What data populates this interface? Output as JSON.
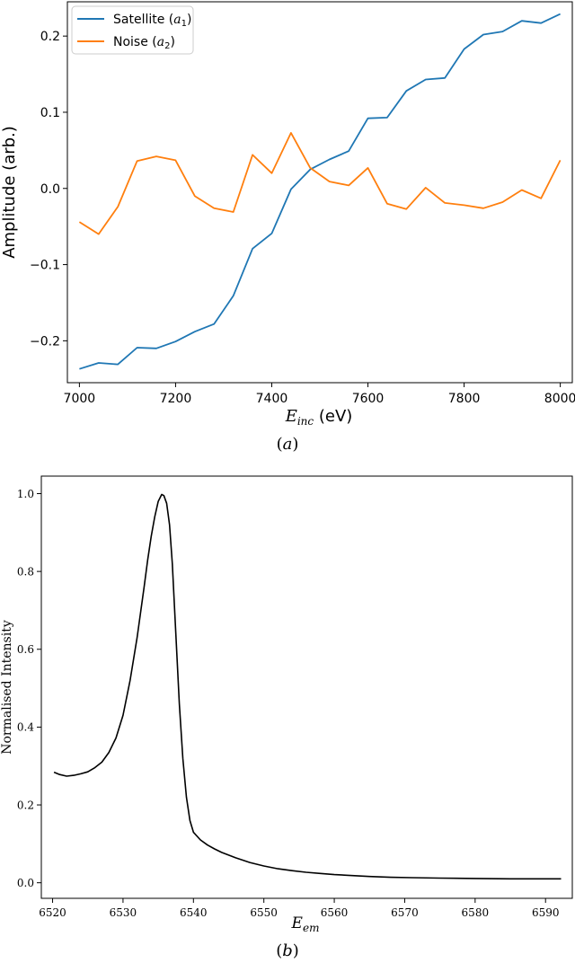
{
  "chart_data": [
    {
      "type": "line",
      "caption": "(a)",
      "xlabel": "E_inc (eV)",
      "ylabel": "Amplitude (arb.)",
      "xlim": [
        6975,
        8025
      ],
      "ylim": [
        -0.255,
        0.245
      ],
      "xticks": [
        7000,
        7200,
        7400,
        7600,
        7800,
        8000
      ],
      "xtick_labels": [
        "7000",
        "7200",
        "7400",
        "7600",
        "7800",
        "8000"
      ],
      "yticks": [
        -0.2,
        -0.1,
        0.0,
        0.1,
        0.2
      ],
      "ytick_labels": [
        "−0.2",
        "−0.1",
        "0.0",
        "0.1",
        "0.2"
      ],
      "grid": false,
      "legend_position": "top-left",
      "x": [
        7000,
        7040,
        7080,
        7120,
        7160,
        7200,
        7240,
        7280,
        7320,
        7360,
        7400,
        7440,
        7480,
        7520,
        7560,
        7600,
        7640,
        7680,
        7720,
        7760,
        7800,
        7840,
        7880,
        7920,
        7960,
        8000
      ],
      "series": [
        {
          "name": "Satellite (a1)",
          "color": "#1f77b4",
          "values": [
            -0.237,
            -0.229,
            -0.231,
            -0.209,
            -0.21,
            -0.201,
            -0.188,
            -0.178,
            -0.141,
            -0.079,
            -0.059,
            -0.001,
            0.025,
            0.038,
            0.049,
            0.092,
            0.093,
            0.128,
            0.143,
            0.145,
            0.183,
            0.202,
            0.206,
            0.22,
            0.217,
            0.229
          ]
        },
        {
          "name": "Noise (a2)",
          "color": "#ff7f0e",
          "values": [
            -0.044,
            -0.06,
            -0.024,
            0.036,
            0.042,
            0.037,
            -0.01,
            -0.026,
            -0.031,
            0.044,
            0.02,
            0.073,
            0.027,
            0.009,
            0.004,
            0.027,
            -0.02,
            -0.027,
            0.001,
            -0.019,
            -0.022,
            -0.026,
            -0.018,
            -0.002,
            -0.013,
            0.037
          ]
        }
      ]
    },
    {
      "type": "line",
      "caption": "(b)",
      "xlabel": "E_em",
      "ylabel": "Normalised Intensity",
      "xlim": [
        6518.4,
        6593.8
      ],
      "ylim": [
        -0.04,
        1.045
      ],
      "xticks": [
        6520,
        6530,
        6540,
        6550,
        6560,
        6570,
        6580,
        6590
      ],
      "xtick_labels": [
        "6520",
        "6530",
        "6540",
        "6550",
        "6560",
        "6570",
        "6580",
        "6590"
      ],
      "yticks": [
        0.0,
        0.2,
        0.4,
        0.6,
        0.8,
        1.0
      ],
      "ytick_labels": [
        "0.0",
        "0.2",
        "0.4",
        "0.6",
        "0.8",
        "1.0"
      ],
      "grid": false,
      "series": [
        {
          "color": "#000000",
          "x": [
            6520.2,
            6521,
            6522,
            6523,
            6524,
            6525,
            6526,
            6527,
            6528,
            6529,
            6530,
            6531,
            6532,
            6533,
            6533.5,
            6534,
            6534.5,
            6535,
            6535.5,
            6535.8,
            6536.2,
            6536.6,
            6537,
            6537.5,
            6538,
            6538.5,
            6539,
            6539.5,
            6540,
            6541,
            6542,
            6543,
            6544,
            6545,
            6546,
            6547,
            6548,
            6550,
            6552,
            6554,
            6556,
            6558,
            6560,
            6562,
            6565,
            6568,
            6571,
            6575,
            6580,
            6585,
            6589,
            6592.2
          ],
          "values": [
            0.284,
            0.278,
            0.274,
            0.276,
            0.28,
            0.285,
            0.296,
            0.31,
            0.335,
            0.372,
            0.43,
            0.52,
            0.63,
            0.76,
            0.83,
            0.89,
            0.94,
            0.98,
            0.998,
            0.995,
            0.975,
            0.92,
            0.82,
            0.64,
            0.46,
            0.32,
            0.22,
            0.16,
            0.13,
            0.11,
            0.097,
            0.087,
            0.078,
            0.071,
            0.064,
            0.058,
            0.052,
            0.043,
            0.036,
            0.031,
            0.027,
            0.024,
            0.021,
            0.019,
            0.016,
            0.014,
            0.013,
            0.012,
            0.011,
            0.01,
            0.01,
            0.01
          ]
        }
      ]
    }
  ]
}
